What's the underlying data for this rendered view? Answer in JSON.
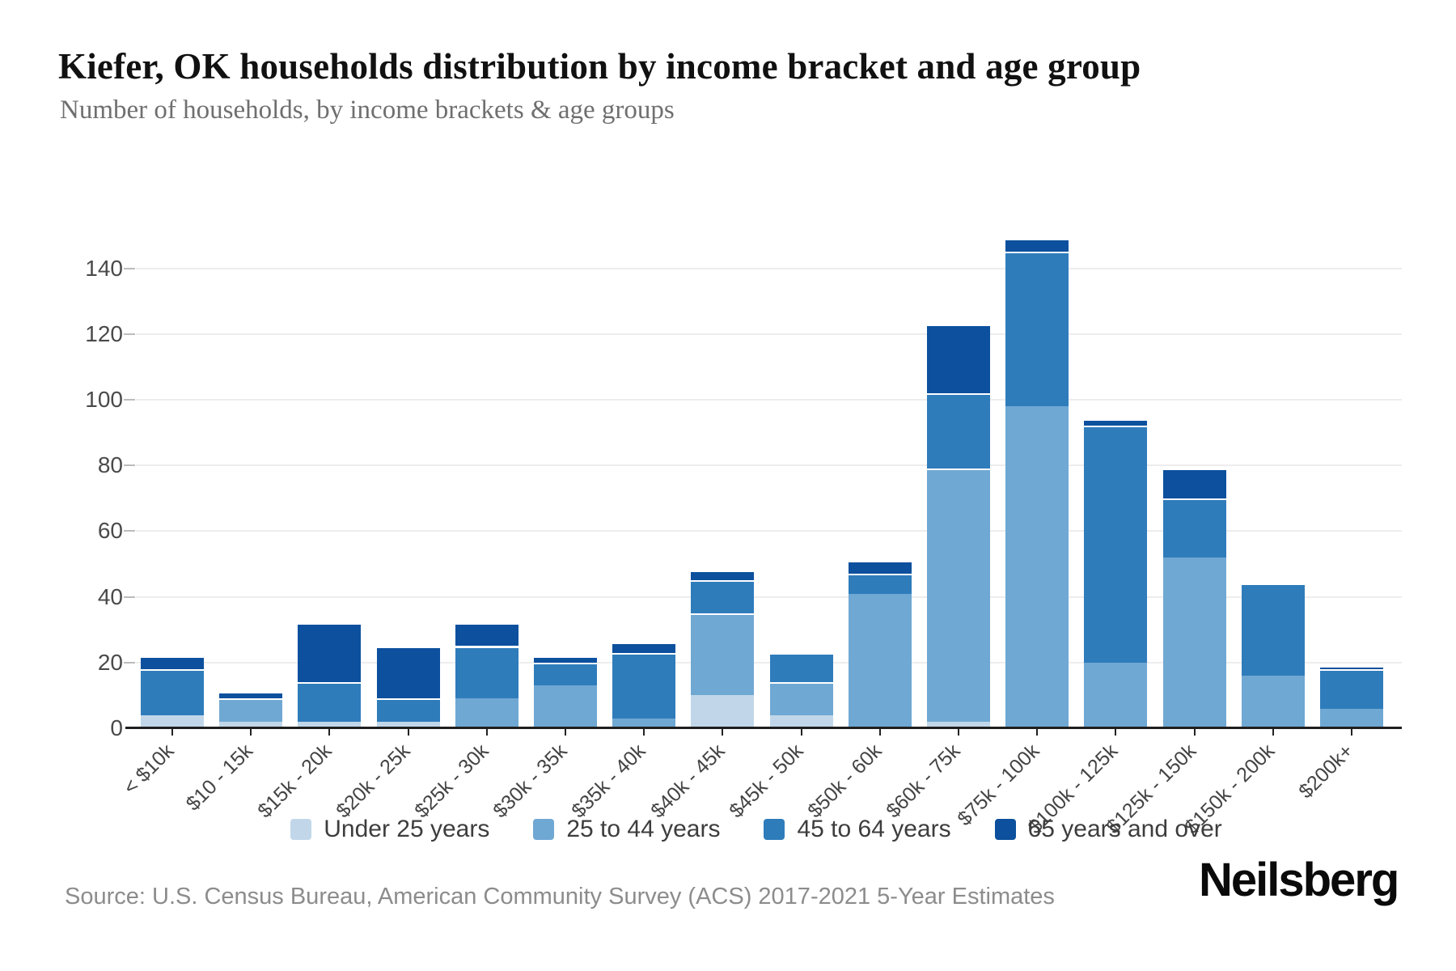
{
  "page": {
    "title": "Kiefer, OK households distribution by income bracket and age group",
    "subtitle": "Number of households, by income brackets & age groups",
    "source": "Source: U.S. Census Bureau, American Community Survey (ACS) 2017-2021 5-Year Estimates",
    "brand": "Neilsberg"
  },
  "colors": {
    "under_25": "#c1d7e9",
    "age_25_44": "#6fa8d3",
    "age_45_64": "#2f7cbb",
    "age_65_over": "#0c509e",
    "gridline": "#ededed",
    "axis": "#1f1f1f",
    "title_text": "#111111",
    "subtitle_text": "#6f6f6f",
    "source_text": "#8c8c8c"
  },
  "chart_data": {
    "type": "bar",
    "stacked": true,
    "title": "Kiefer, OK households distribution by income bracket and age group",
    "subtitle": "Number of households, by income brackets & age groups",
    "categories": [
      "< $10k",
      "$10 - 15k",
      "$15k - 20k",
      "$20k - 25k",
      "$25k - 30k",
      "$30k - 35k",
      "$35k - 40k",
      "$40k - 45k",
      "$45k - 50k",
      "$50k - 60k",
      "$60k - 75k",
      "$75k - 100k",
      "$100k - 125k",
      "$125k - 150k",
      "$150k - 200k",
      "$200k+"
    ],
    "series": [
      {
        "name": "Under 25 years",
        "color": "#c1d7e9",
        "values": [
          4,
          2,
          2,
          2,
          0,
          0,
          0,
          10,
          4,
          0,
          2,
          0,
          0,
          0,
          0,
          0
        ]
      },
      {
        "name": "25 to 44 years",
        "color": "#6fa8d3",
        "values": [
          0,
          7,
          0,
          0,
          9,
          13,
          3,
          25,
          10,
          41,
          77,
          98,
          20,
          52,
          16,
          6
        ]
      },
      {
        "name": "45 to 64 years",
        "color": "#2f7cbb",
        "values": [
          14,
          0,
          12,
          7,
          16,
          7,
          20,
          10,
          9,
          6,
          23,
          47,
          72,
          18,
          28,
          12
        ]
      },
      {
        "name": "65 years and over",
        "color": "#0c509e",
        "values": [
          4,
          2,
          18,
          16,
          7,
          2,
          3,
          3,
          0,
          4,
          21,
          4,
          2,
          9,
          0,
          1
        ]
      }
    ],
    "totals": [
      22,
      11,
      32,
      25,
      32,
      22,
      26,
      48,
      23,
      51,
      123,
      149,
      94,
      79,
      44,
      19
    ],
    "xlabel": "",
    "ylabel": "",
    "ylim": [
      0,
      150
    ],
    "yticks": [
      0,
      20,
      40,
      60,
      80,
      100,
      120,
      140
    ],
    "grid": "horizontal",
    "legend_position": "bottom"
  }
}
